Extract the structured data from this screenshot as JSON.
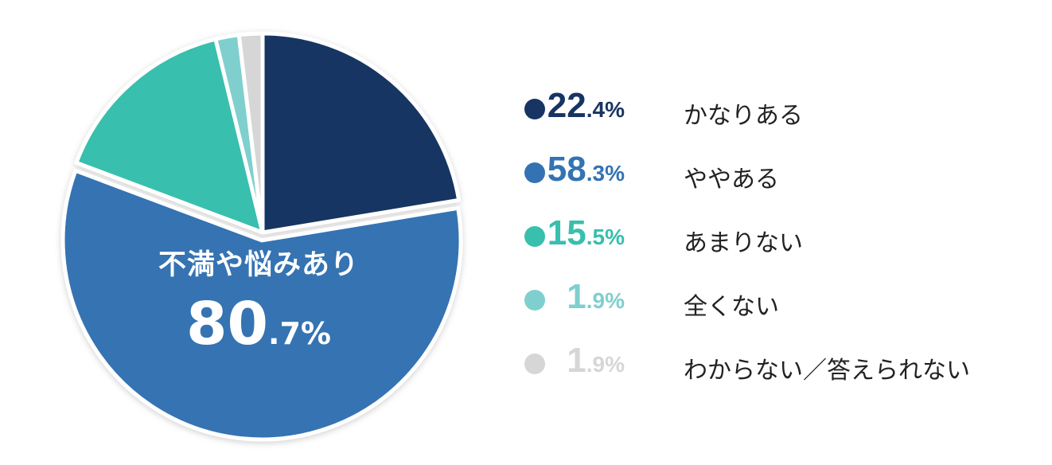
{
  "chart_data": {
    "type": "pie",
    "categories": [
      "かなりある",
      "ややある",
      "あまりない",
      "全くない",
      "わからない／答えられない"
    ],
    "values": [
      22.4,
      58.3,
      15.5,
      1.9,
      1.9
    ],
    "colors": [
      "#173462",
      "#3473b3",
      "#38bfad",
      "#7fcfce",
      "#d6d6d6"
    ],
    "value_int": [
      "22",
      "58",
      "15",
      "1",
      "1"
    ],
    "value_dec": [
      ".4%",
      ".3%",
      ".5%",
      ".9%",
      ".9%"
    ],
    "exploded_slice_index": 1,
    "center_label": "不満や悩みあり",
    "center_value_int": "80",
    "center_value_dec": ".7%",
    "legend_position": "right"
  }
}
